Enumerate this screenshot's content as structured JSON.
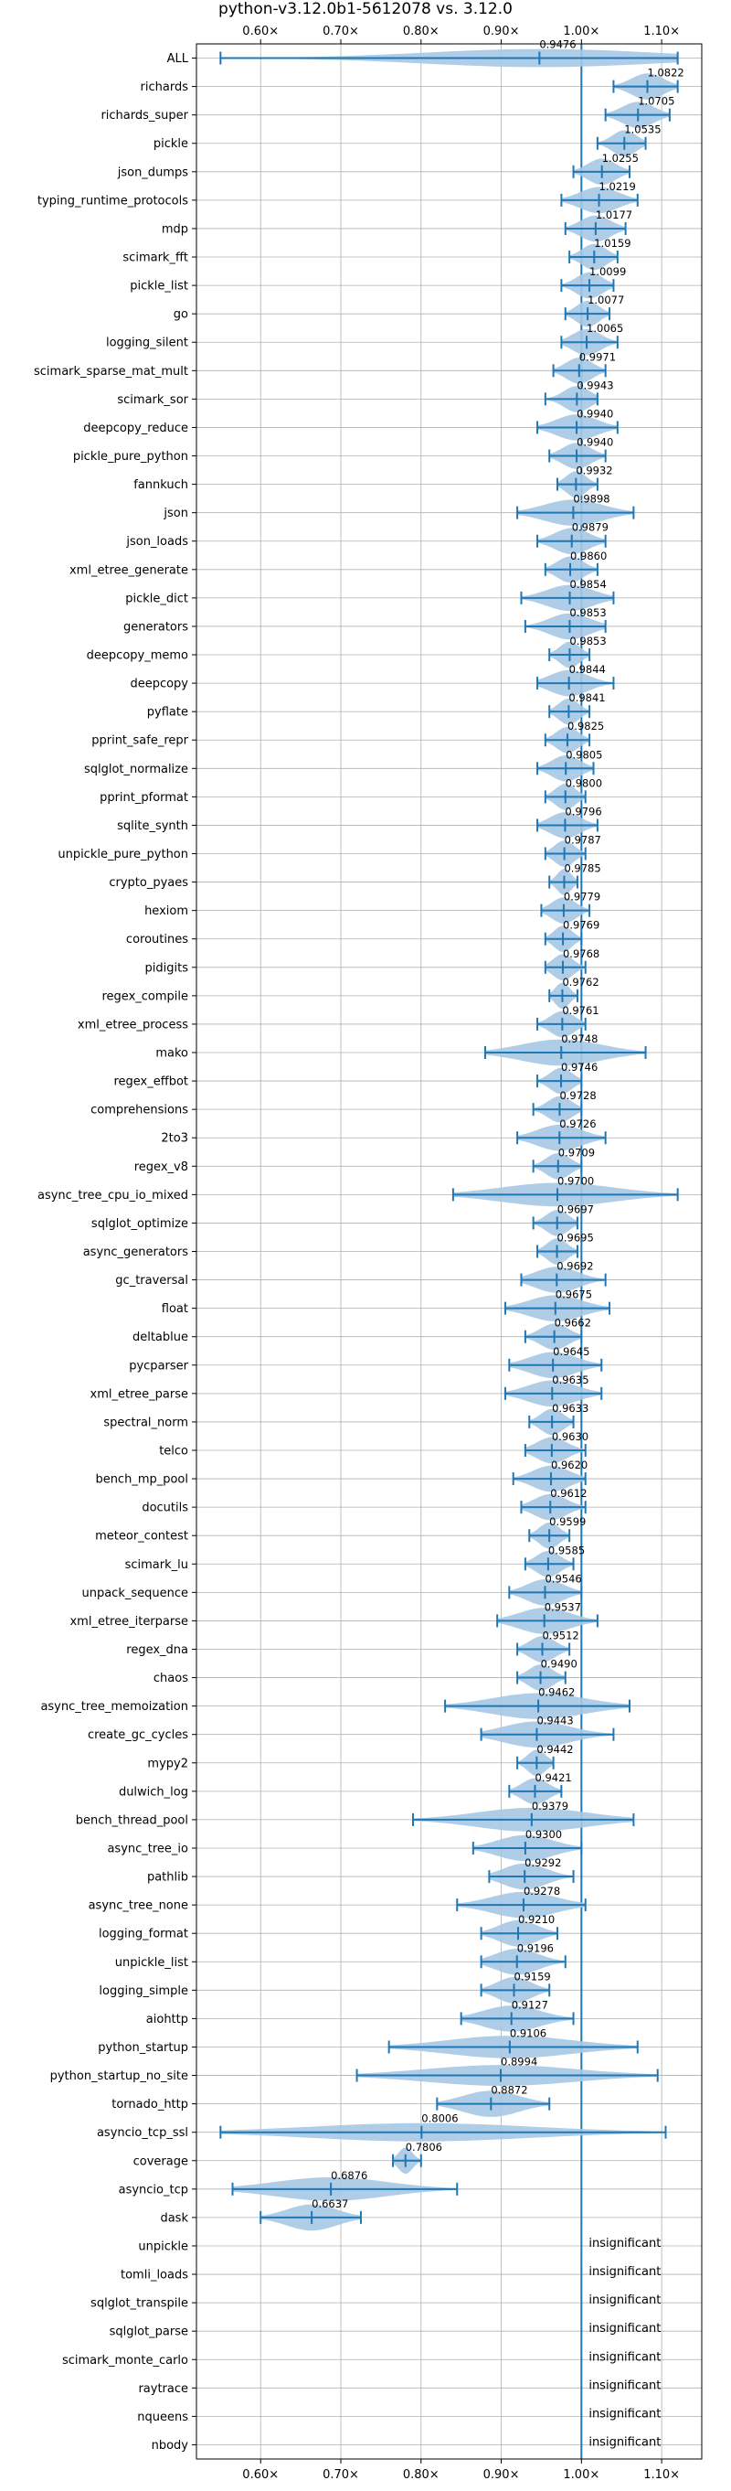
{
  "chart_data": {
    "type": "violin",
    "title": "python-v3.12.0b1-5612078 vs. 3.12.0",
    "xlim": [
      0.52,
      1.15
    ],
    "x_tick_values": [
      0.6,
      0.7,
      0.8,
      0.9,
      1.0,
      1.1
    ],
    "x_tick_labels": [
      "0.60×",
      "0.70×",
      "0.80×",
      "0.90×",
      "1.00×",
      "1.10×"
    ],
    "reference_line": 1.0,
    "grid": true,
    "significant": [
      {
        "name": "ALL",
        "value": 0.9476,
        "min": 0.55,
        "max": 1.12,
        "value_label": "0.9476"
      },
      {
        "name": "richards",
        "value": 1.0822,
        "min": 1.04,
        "max": 1.12,
        "value_label": "1.0822"
      },
      {
        "name": "richards_super",
        "value": 1.0705,
        "min": 1.03,
        "max": 1.11,
        "value_label": "1.0705"
      },
      {
        "name": "pickle",
        "value": 1.0535,
        "min": 1.02,
        "max": 1.08,
        "value_label": "1.0535"
      },
      {
        "name": "json_dumps",
        "value": 1.0255,
        "min": 0.99,
        "max": 1.06,
        "value_label": "1.0255"
      },
      {
        "name": "typing_runtime_protocols",
        "value": 1.0219,
        "min": 0.975,
        "max": 1.07,
        "value_label": "1.0219"
      },
      {
        "name": "mdp",
        "value": 1.0177,
        "min": 0.98,
        "max": 1.055,
        "value_label": "1.0177"
      },
      {
        "name": "scimark_fft",
        "value": 1.0159,
        "min": 0.985,
        "max": 1.045,
        "value_label": "1.0159"
      },
      {
        "name": "pickle_list",
        "value": 1.0099,
        "min": 0.975,
        "max": 1.04,
        "value_label": "1.0099"
      },
      {
        "name": "go",
        "value": 1.0077,
        "min": 0.98,
        "max": 1.035,
        "value_label": "1.0077"
      },
      {
        "name": "logging_silent",
        "value": 1.0065,
        "min": 0.975,
        "max": 1.045,
        "value_label": "1.0065"
      },
      {
        "name": "scimark_sparse_mat_mult",
        "value": 0.9971,
        "min": 0.965,
        "max": 1.03,
        "value_label": "0.9971"
      },
      {
        "name": "scimark_sor",
        "value": 0.9943,
        "min": 0.955,
        "max": 1.02,
        "value_label": "0.9943"
      },
      {
        "name": "deepcopy_reduce",
        "value": 0.994,
        "min": 0.945,
        "max": 1.045,
        "value_label": "0.9940"
      },
      {
        "name": "pickle_pure_python",
        "value": 0.994,
        "min": 0.96,
        "max": 1.03,
        "value_label": "0.9940"
      },
      {
        "name": "fannkuch",
        "value": 0.9932,
        "min": 0.97,
        "max": 1.02,
        "value_label": "0.9932"
      },
      {
        "name": "json",
        "value": 0.9898,
        "min": 0.92,
        "max": 1.065,
        "value_label": "0.9898"
      },
      {
        "name": "json_loads",
        "value": 0.9879,
        "min": 0.945,
        "max": 1.03,
        "value_label": "0.9879"
      },
      {
        "name": "xml_etree_generate",
        "value": 0.986,
        "min": 0.955,
        "max": 1.02,
        "value_label": "0.9860"
      },
      {
        "name": "pickle_dict",
        "value": 0.9854,
        "min": 0.925,
        "max": 1.04,
        "value_label": "0.9854"
      },
      {
        "name": "generators",
        "value": 0.9853,
        "min": 0.93,
        "max": 1.03,
        "value_label": "0.9853"
      },
      {
        "name": "deepcopy_memo",
        "value": 0.9853,
        "min": 0.96,
        "max": 1.01,
        "value_label": "0.9853"
      },
      {
        "name": "deepcopy",
        "value": 0.9844,
        "min": 0.945,
        "max": 1.04,
        "value_label": "0.9844"
      },
      {
        "name": "pyflate",
        "value": 0.9841,
        "min": 0.96,
        "max": 1.01,
        "value_label": "0.9841"
      },
      {
        "name": "pprint_safe_repr",
        "value": 0.9825,
        "min": 0.955,
        "max": 1.01,
        "value_label": "0.9825"
      },
      {
        "name": "sqlglot_normalize",
        "value": 0.9805,
        "min": 0.945,
        "max": 1.015,
        "value_label": "0.9805"
      },
      {
        "name": "pprint_pformat",
        "value": 0.98,
        "min": 0.955,
        "max": 1.005,
        "value_label": "0.9800"
      },
      {
        "name": "sqlite_synth",
        "value": 0.9796,
        "min": 0.945,
        "max": 1.02,
        "value_label": "0.9796"
      },
      {
        "name": "unpickle_pure_python",
        "value": 0.9787,
        "min": 0.955,
        "max": 1.005,
        "value_label": "0.9787"
      },
      {
        "name": "crypto_pyaes",
        "value": 0.9785,
        "min": 0.96,
        "max": 0.995,
        "value_label": "0.9785"
      },
      {
        "name": "hexiom",
        "value": 0.9779,
        "min": 0.95,
        "max": 1.01,
        "value_label": "0.9779"
      },
      {
        "name": "coroutines",
        "value": 0.9769,
        "min": 0.955,
        "max": 1.0,
        "value_label": "0.9769"
      },
      {
        "name": "pidigits",
        "value": 0.9768,
        "min": 0.955,
        "max": 1.005,
        "value_label": "0.9768"
      },
      {
        "name": "regex_compile",
        "value": 0.9762,
        "min": 0.96,
        "max": 0.995,
        "value_label": "0.9762"
      },
      {
        "name": "xml_etree_process",
        "value": 0.9761,
        "min": 0.945,
        "max": 1.005,
        "value_label": "0.9761"
      },
      {
        "name": "mako",
        "value": 0.9748,
        "min": 0.88,
        "max": 1.08,
        "value_label": "0.9748"
      },
      {
        "name": "regex_effbot",
        "value": 0.9746,
        "min": 0.945,
        "max": 1.0,
        "value_label": "0.9746"
      },
      {
        "name": "comprehensions",
        "value": 0.9728,
        "min": 0.94,
        "max": 1.0,
        "value_label": "0.9728"
      },
      {
        "name": "2to3",
        "value": 0.9726,
        "min": 0.92,
        "max": 1.03,
        "value_label": "0.9726"
      },
      {
        "name": "regex_v8",
        "value": 0.9709,
        "min": 0.94,
        "max": 1.0,
        "value_label": "0.9709"
      },
      {
        "name": "async_tree_cpu_io_mixed",
        "value": 0.97,
        "min": 0.84,
        "max": 1.12,
        "value_label": "0.9700"
      },
      {
        "name": "sqlglot_optimize",
        "value": 0.9697,
        "min": 0.94,
        "max": 0.995,
        "value_label": "0.9697"
      },
      {
        "name": "async_generators",
        "value": 0.9695,
        "min": 0.945,
        "max": 0.995,
        "value_label": "0.9695"
      },
      {
        "name": "gc_traversal",
        "value": 0.9692,
        "min": 0.925,
        "max": 1.03,
        "value_label": "0.9692"
      },
      {
        "name": "float",
        "value": 0.9675,
        "min": 0.905,
        "max": 1.035,
        "value_label": "0.9675"
      },
      {
        "name": "deltablue",
        "value": 0.9662,
        "min": 0.93,
        "max": 1.0,
        "value_label": "0.9662"
      },
      {
        "name": "pycparser",
        "value": 0.9645,
        "min": 0.91,
        "max": 1.025,
        "value_label": "0.9645"
      },
      {
        "name": "xml_etree_parse",
        "value": 0.9635,
        "min": 0.905,
        "max": 1.025,
        "value_label": "0.9635"
      },
      {
        "name": "spectral_norm",
        "value": 0.9633,
        "min": 0.935,
        "max": 0.99,
        "value_label": "0.9633"
      },
      {
        "name": "telco",
        "value": 0.963,
        "min": 0.93,
        "max": 1.005,
        "value_label": "0.9630"
      },
      {
        "name": "bench_mp_pool",
        "value": 0.962,
        "min": 0.915,
        "max": 1.005,
        "value_label": "0.9620"
      },
      {
        "name": "docutils",
        "value": 0.9612,
        "min": 0.925,
        "max": 1.005,
        "value_label": "0.9612"
      },
      {
        "name": "meteor_contest",
        "value": 0.9599,
        "min": 0.935,
        "max": 0.985,
        "value_label": "0.9599"
      },
      {
        "name": "scimark_lu",
        "value": 0.9585,
        "min": 0.93,
        "max": 0.99,
        "value_label": "0.9585"
      },
      {
        "name": "unpack_sequence",
        "value": 0.9546,
        "min": 0.91,
        "max": 1.0,
        "value_label": "0.9546"
      },
      {
        "name": "xml_etree_iterparse",
        "value": 0.9537,
        "min": 0.895,
        "max": 1.02,
        "value_label": "0.9537"
      },
      {
        "name": "regex_dna",
        "value": 0.9512,
        "min": 0.92,
        "max": 0.985,
        "value_label": "0.9512"
      },
      {
        "name": "chaos",
        "value": 0.949,
        "min": 0.92,
        "max": 0.98,
        "value_label": "0.9490"
      },
      {
        "name": "async_tree_memoization",
        "value": 0.9462,
        "min": 0.83,
        "max": 1.06,
        "value_label": "0.9462"
      },
      {
        "name": "create_gc_cycles",
        "value": 0.9443,
        "min": 0.875,
        "max": 1.04,
        "value_label": "0.9443"
      },
      {
        "name": "mypy2",
        "value": 0.9442,
        "min": 0.92,
        "max": 0.965,
        "value_label": "0.9442"
      },
      {
        "name": "dulwich_log",
        "value": 0.9421,
        "min": 0.91,
        "max": 0.975,
        "value_label": "0.9421"
      },
      {
        "name": "bench_thread_pool",
        "value": 0.9379,
        "min": 0.79,
        "max": 1.065,
        "value_label": "0.9379"
      },
      {
        "name": "async_tree_io",
        "value": 0.93,
        "min": 0.865,
        "max": 1.0,
        "value_label": "0.9300"
      },
      {
        "name": "pathlib",
        "value": 0.9292,
        "min": 0.885,
        "max": 0.99,
        "value_label": "0.9292"
      },
      {
        "name": "async_tree_none",
        "value": 0.9278,
        "min": 0.845,
        "max": 1.005,
        "value_label": "0.9278"
      },
      {
        "name": "logging_format",
        "value": 0.921,
        "min": 0.875,
        "max": 0.97,
        "value_label": "0.9210"
      },
      {
        "name": "unpickle_list",
        "value": 0.9196,
        "min": 0.875,
        "max": 0.98,
        "value_label": "0.9196"
      },
      {
        "name": "logging_simple",
        "value": 0.9159,
        "min": 0.875,
        "max": 0.96,
        "value_label": "0.9159"
      },
      {
        "name": "aiohttp",
        "value": 0.9127,
        "min": 0.85,
        "max": 0.99,
        "value_label": "0.9127"
      },
      {
        "name": "python_startup",
        "value": 0.9106,
        "min": 0.76,
        "max": 1.07,
        "value_label": "0.9106"
      },
      {
        "name": "python_startup_no_site",
        "value": 0.8994,
        "min": 0.72,
        "max": 1.095,
        "value_label": "0.8994"
      },
      {
        "name": "tornado_http",
        "value": 0.8872,
        "min": 0.82,
        "max": 0.96,
        "value_label": "0.8872"
      },
      {
        "name": "asyncio_tcp_ssl",
        "value": 0.8006,
        "min": 0.55,
        "max": 1.105,
        "value_label": "0.8006"
      },
      {
        "name": "coverage",
        "value": 0.7806,
        "min": 0.765,
        "max": 0.8,
        "value_label": "0.7806"
      },
      {
        "name": "asyncio_tcp",
        "value": 0.6876,
        "min": 0.565,
        "max": 0.845,
        "value_label": "0.6876"
      },
      {
        "name": "dask",
        "value": 0.6637,
        "min": 0.6,
        "max": 0.725,
        "value_label": "0.6637"
      }
    ],
    "insignificant_label": "insignificant",
    "insignificant": [
      "unpickle",
      "tomli_loads",
      "sqlglot_transpile",
      "sqlglot_parse",
      "scimark_monte_carlo",
      "raytrace",
      "nqueens",
      "nbody"
    ],
    "colors": {
      "violin": "#1f77b4",
      "violin_fill": "#a6c8e4",
      "grid": "#b0b0b0",
      "text": "#000000"
    }
  }
}
